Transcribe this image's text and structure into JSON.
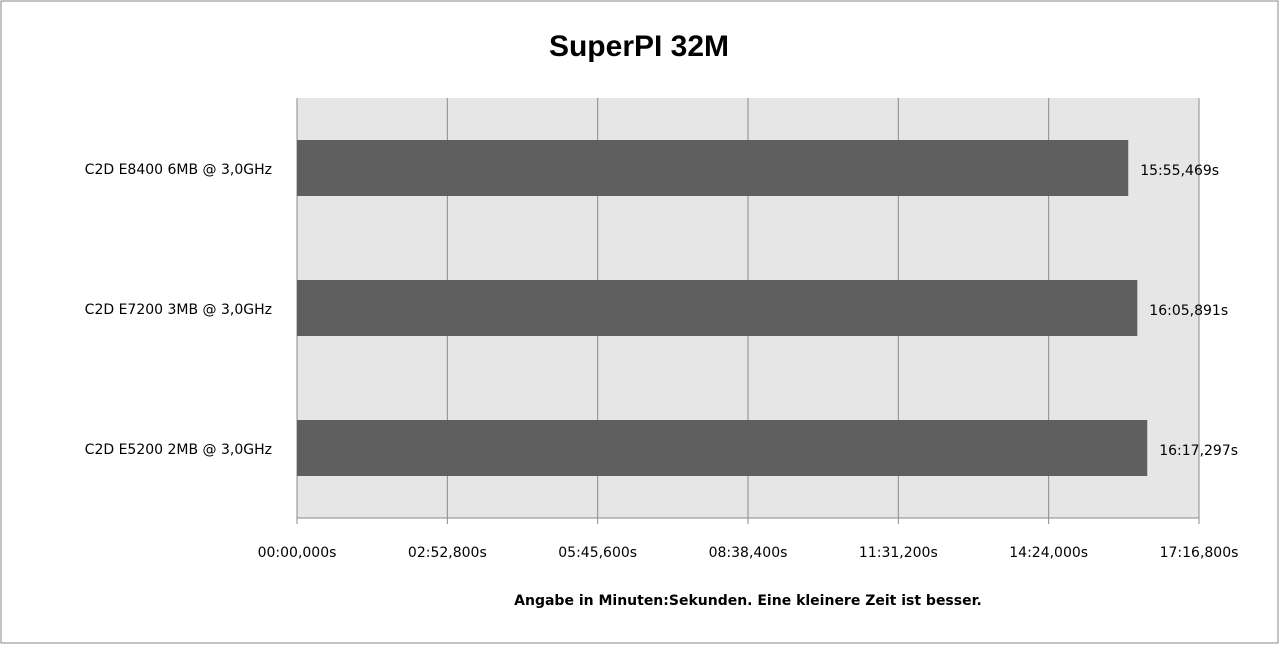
{
  "chart_data": {
    "type": "bar",
    "orientation": "horizontal",
    "title": "SuperPI 32M",
    "x_label": "Angabe in Minuten:Sekunden. Eine kleinere Zeit ist besser.",
    "categories": [
      "C2D E8400 6MB @ 3,0GHz",
      "C2D E7200 3MB @ 3,0GHz",
      "C2D E5200 2MB @ 3,0GHz"
    ],
    "values": [
      955.469,
      965.891,
      977.297
    ],
    "value_labels": [
      "15:55,469s",
      "16:05,891s",
      "16:17,297s"
    ],
    "color": "#5f5f5f",
    "xlim": [
      0,
      1036.8
    ],
    "xticks": [
      {
        "value": 0,
        "label": "00:00,000s"
      },
      {
        "value": 172.8,
        "label": "02:52,800s"
      },
      {
        "value": 345.6,
        "label": "05:45,600s"
      },
      {
        "value": 518.4,
        "label": "08:38,400s"
      },
      {
        "value": 691.2,
        "label": "11:31,200s"
      },
      {
        "value": 864,
        "label": "14:24,000s"
      },
      {
        "value": 1036.8,
        "label": "17:16,800s"
      }
    ],
    "grid": true
  }
}
